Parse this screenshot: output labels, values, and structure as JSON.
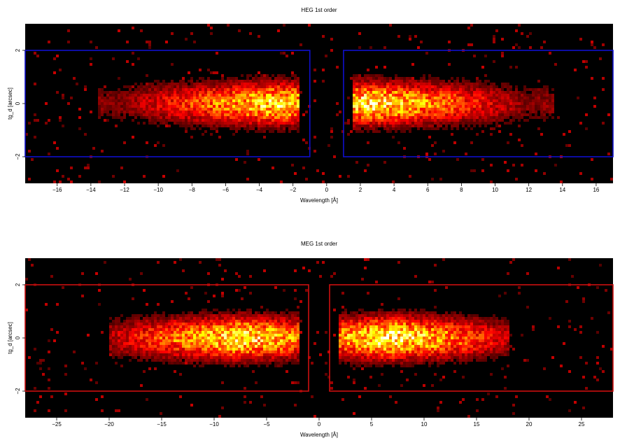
{
  "chart_data": [
    {
      "type": "heatmap",
      "title": "HEG 1st order",
      "xlabel": "Wavelength [Å]",
      "ylabel": "tg_d [arcsec]",
      "xlim": [
        -17.9,
        17.0
      ],
      "ylim": [
        -3.0,
        3.0
      ],
      "xticks": [
        -16,
        -14,
        -12,
        -10,
        -8,
        -6,
        -4,
        -2,
        0,
        2,
        4,
        6,
        8,
        10,
        12,
        14,
        16
      ],
      "yticks": [
        -2,
        0,
        2
      ],
      "x_tick_labels": [
        "−16",
        "−14",
        "−12",
        "−10",
        "−8",
        "−6",
        "−4",
        "−2",
        "0",
        "2",
        "4",
        "6",
        "8",
        "10",
        "12",
        "14",
        "16"
      ],
      "y_tick_labels": [
        "−2",
        "0",
        "2"
      ],
      "colormap": "hot",
      "background_color": "#000000",
      "extraction_region_color": "#1010cc",
      "extraction_regions": [
        {
          "x_range": [
            -17.9,
            -1.0
          ],
          "y_range": [
            -2.0,
            2.0
          ]
        },
        {
          "x_range": [
            1.0,
            17.0
          ],
          "y_range": [
            -2.0,
            2.0
          ]
        }
      ],
      "emission_bands": [
        {
          "x_range": [
            -13.5,
            -1.6
          ],
          "peak_x": -3.0,
          "intensity": 0.9
        },
        {
          "x_range": [
            1.6,
            13.5
          ],
          "peak_x": 2.6,
          "intensity": 0.95
        }
      ]
    },
    {
      "type": "heatmap",
      "title": "MEG 1st order",
      "xlabel": "Wavelength [Å]",
      "ylabel": "tg_d [arcsec]",
      "xlim": [
        -28.0,
        28.0
      ],
      "ylim": [
        -3.0,
        3.0
      ],
      "xticks": [
        -25,
        -20,
        -15,
        -10,
        -5,
        0,
        5,
        10,
        15,
        20,
        25
      ],
      "yticks": [
        -2,
        0,
        2
      ],
      "x_tick_labels": [
        "−25",
        "−20",
        "−15",
        "−10",
        "−5",
        "0",
        "5",
        "10",
        "15",
        "20",
        "25"
      ],
      "y_tick_labels": [
        "−2",
        "0",
        "2"
      ],
      "colormap": "hot",
      "background_color": "#000000",
      "extraction_region_color": "#cc1010",
      "extraction_regions": [
        {
          "x_range": [
            -28.0,
            -1.0
          ],
          "y_range": [
            -2.0,
            2.0
          ]
        },
        {
          "x_range": [
            1.0,
            28.0
          ],
          "y_range": [
            -2.0,
            2.0
          ]
        }
      ],
      "emission_bands": [
        {
          "x_range": [
            -20.0,
            -2.0
          ],
          "peak_x": -7.5,
          "intensity": 0.95
        },
        {
          "x_range": [
            2.0,
            18.0
          ],
          "peak_x": 7.0,
          "intensity": 1.0
        }
      ]
    }
  ]
}
